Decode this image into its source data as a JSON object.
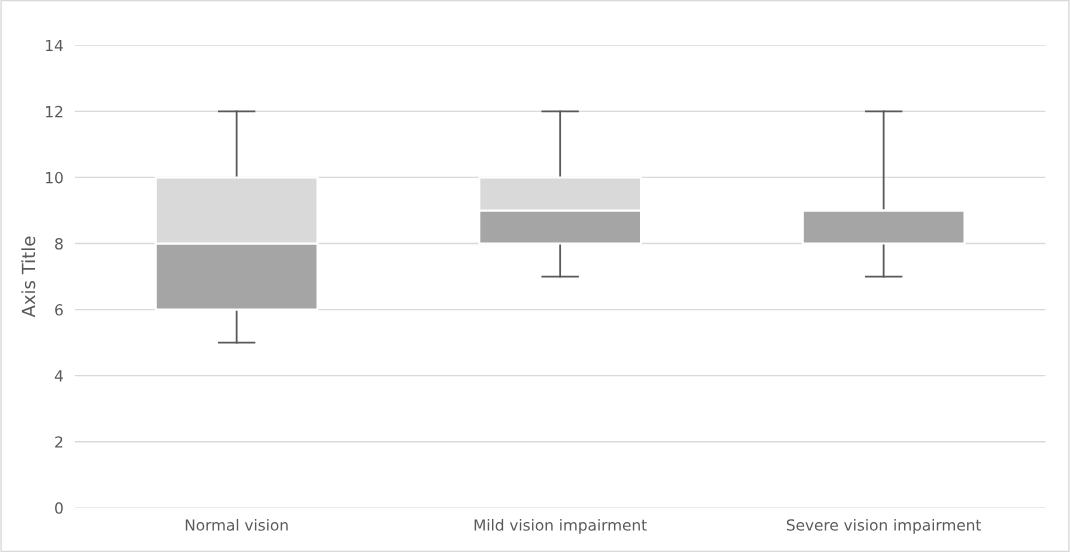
{
  "chart_data": {
    "type": "box",
    "ylabel": "Axis Title",
    "categories": [
      "Normal vision",
      "Mild vision impairment",
      "Severe vision impairment"
    ],
    "boxes": [
      {
        "low": 5,
        "q1": 6,
        "median": 8,
        "q3": 10,
        "high": 12
      },
      {
        "low": 7,
        "q1": 8,
        "median": 9,
        "q3": 10,
        "high": 12
      },
      {
        "low": 7,
        "q1": 8,
        "median": 9,
        "q3": 9,
        "high": 12
      }
    ],
    "colors": [
      "#a5a5a5",
      "#a5a5a5",
      "#a5a5a5"
    ],
    "color": "#d9d9d9",
    "ylim": [
      0,
      14
    ],
    "yticks": [
      0,
      2,
      4,
      6,
      8,
      10,
      12,
      14
    ],
    "grid": "y"
  }
}
